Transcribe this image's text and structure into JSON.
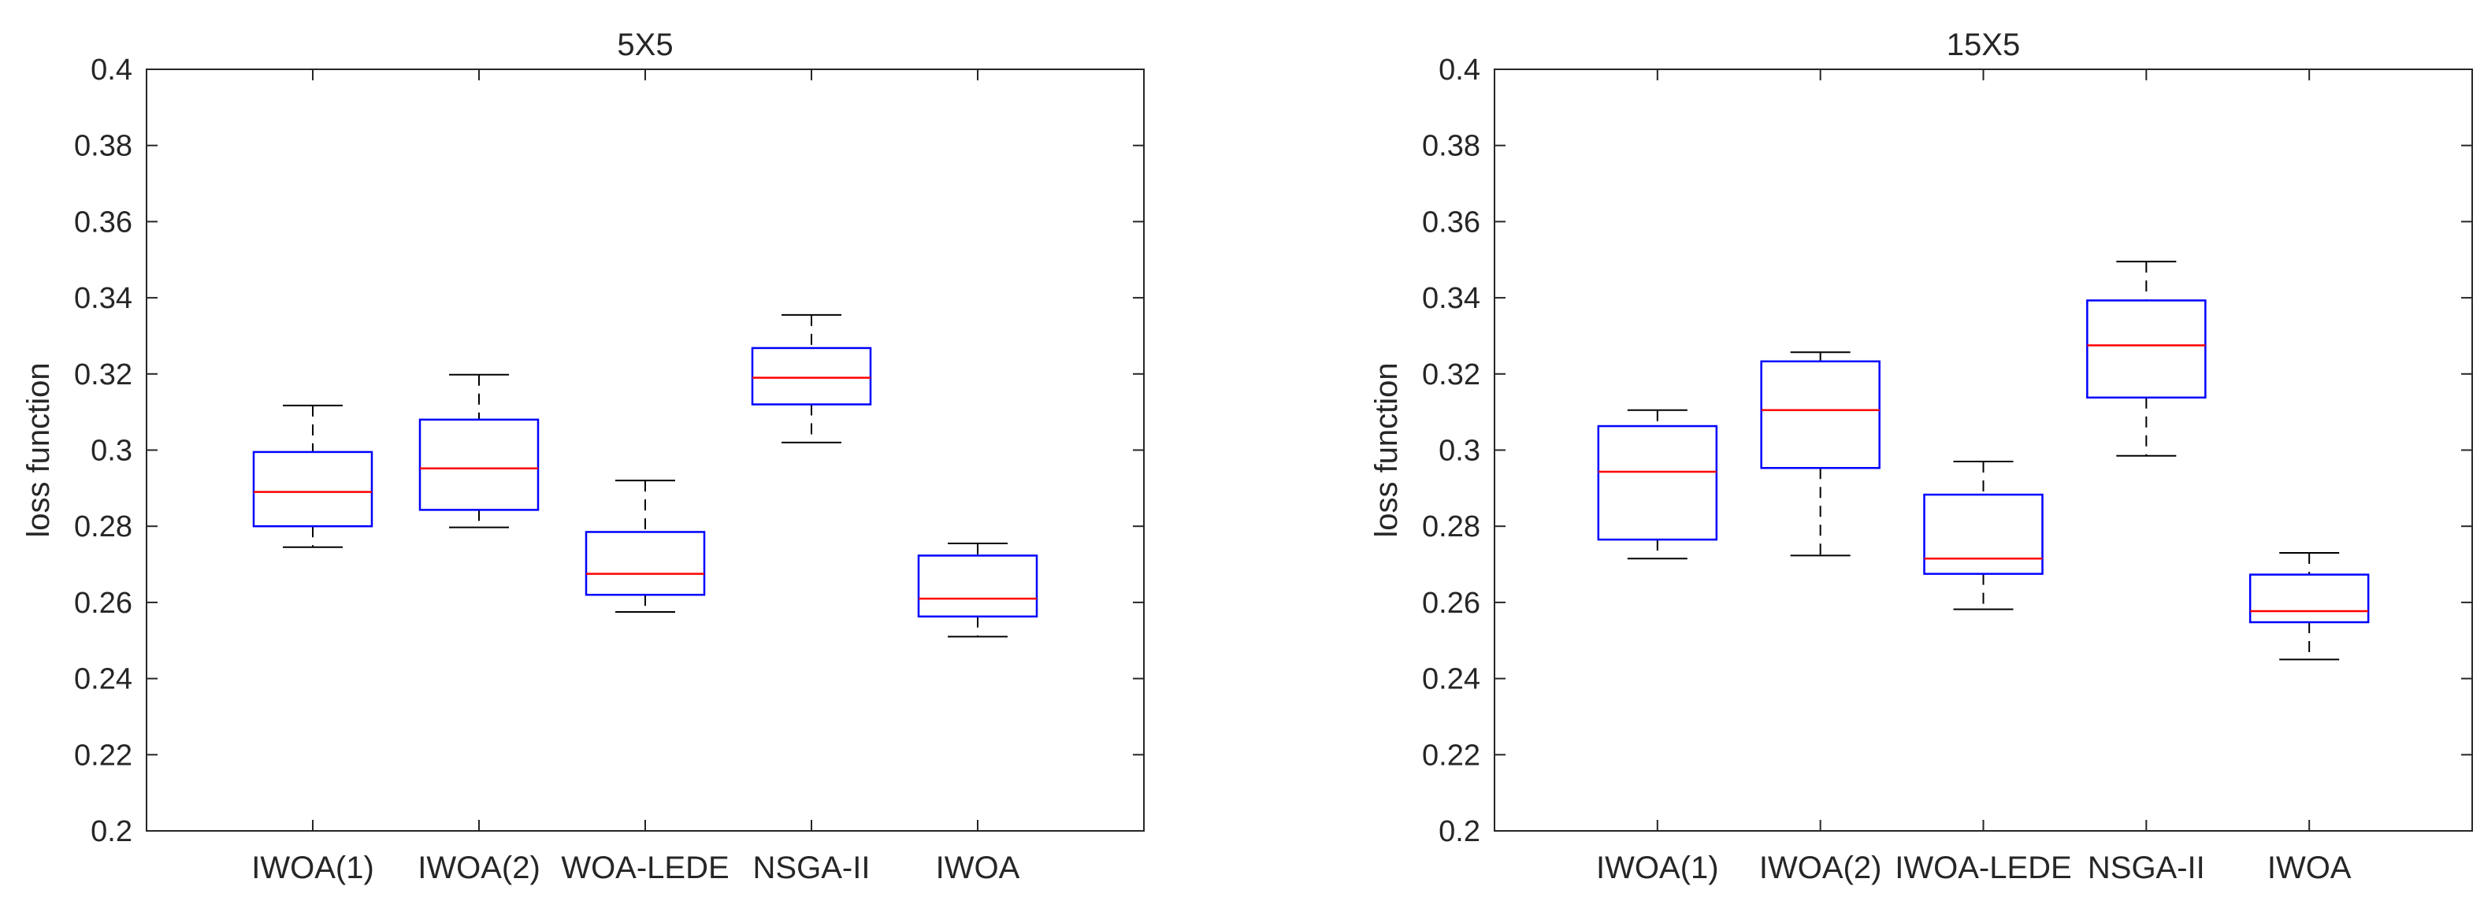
{
  "chart_data": [
    {
      "type": "box",
      "title": "5X5",
      "xlabel": "",
      "ylabel": "loss function",
      "ylim": [
        0.2,
        0.4
      ],
      "yticks": [
        0.2,
        0.22,
        0.24,
        0.26,
        0.28,
        0.3,
        0.32,
        0.34,
        0.36,
        0.38,
        0.4
      ],
      "ytick_labels": [
        "0.2",
        "0.22",
        "0.24",
        "0.26",
        "0.28",
        "0.3",
        "0.32",
        "0.34",
        "0.36",
        "0.38",
        "0.4"
      ],
      "grid": false,
      "categories": [
        "IWOA(1)",
        "IWOA(2)",
        "WOA-LEDE",
        "NSGA-II",
        "IWOA"
      ],
      "boxes": [
        {
          "min": 0.2745,
          "q1": 0.28,
          "median": 0.289,
          "q3": 0.2995,
          "max": 0.3117
        },
        {
          "min": 0.2797,
          "q1": 0.2843,
          "median": 0.2952,
          "q3": 0.308,
          "max": 0.3198
        },
        {
          "min": 0.2575,
          "q1": 0.262,
          "median": 0.2675,
          "q3": 0.2785,
          "max": 0.292
        },
        {
          "min": 0.302,
          "q1": 0.312,
          "median": 0.319,
          "q3": 0.3268,
          "max": 0.3355
        },
        {
          "min": 0.251,
          "q1": 0.2563,
          "median": 0.261,
          "q3": 0.2723,
          "max": 0.2755
        }
      ]
    },
    {
      "type": "box",
      "title": "15X5",
      "xlabel": "",
      "ylabel": "loss function",
      "ylim": [
        0.2,
        0.4
      ],
      "yticks": [
        0.2,
        0.22,
        0.24,
        0.26,
        0.28,
        0.3,
        0.32,
        0.34,
        0.36,
        0.38,
        0.4
      ],
      "ytick_labels": [
        "0.2",
        "0.22",
        "0.24",
        "0.26",
        "0.28",
        "0.3",
        "0.32",
        "0.34",
        "0.36",
        "0.38",
        "0.4"
      ],
      "grid": false,
      "categories": [
        "IWOA(1)",
        "IWOA(2)",
        "IWOA-LEDE",
        "NSGA-II",
        "IWOA"
      ],
      "boxes": [
        {
          "min": 0.2715,
          "q1": 0.2765,
          "median": 0.2943,
          "q3": 0.3063,
          "max": 0.3105
        },
        {
          "min": 0.2723,
          "q1": 0.2953,
          "median": 0.3105,
          "q3": 0.3233,
          "max": 0.3257
        },
        {
          "min": 0.2582,
          "q1": 0.2675,
          "median": 0.2715,
          "q3": 0.2883,
          "max": 0.297
        },
        {
          "min": 0.2985,
          "q1": 0.3138,
          "median": 0.3275,
          "q3": 0.3393,
          "max": 0.3495
        },
        {
          "min": 0.245,
          "q1": 0.2548,
          "median": 0.2577,
          "q3": 0.2673,
          "max": 0.273
        }
      ]
    }
  ],
  "colors": {
    "box": "#0000ff",
    "median": "#ff0000",
    "whisker": "#000000",
    "axis": "#262626",
    "background": "#ffffff"
  }
}
